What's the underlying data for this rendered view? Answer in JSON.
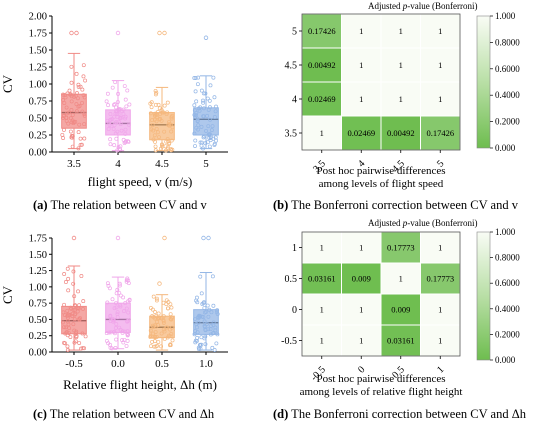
{
  "colors": {
    "series": [
      "#f08a86",
      "#f0a6ea",
      "#f5b87e",
      "#93b6e6"
    ],
    "heat_low": "#6ebd4f",
    "heat_high": "#f9fcf5",
    "heat_grid": "#ffffff"
  },
  "captions": [
    {
      "letter": "(a)",
      "text": " The relation between CV and v"
    },
    {
      "letter": "(b)",
      "text": " The Bonferroni correction between CV and v"
    },
    {
      "letter": "(c)",
      "text": " The relation between CV and Δh"
    },
    {
      "letter": "(d)",
      "text": " The Bonferroni correction between CV and Δh"
    }
  ],
  "chart_data": [
    {
      "id": "a",
      "type": "box",
      "xlabel": "flight speed, v (m/s)",
      "ylabel": "CV",
      "ylim": [
        0,
        2.0
      ],
      "yticks": [
        "0.00",
        "0.25",
        "0.50",
        "0.75",
        "1.00",
        "1.25",
        "1.50",
        "1.75",
        "2.00"
      ],
      "categories": [
        "3.5",
        "4",
        "4.5",
        "5"
      ],
      "boxes": [
        {
          "min": 0.05,
          "q1": 0.35,
          "median": 0.58,
          "q3": 0.85,
          "max": 1.45,
          "outliers": [
            1.75,
            1.75
          ]
        },
        {
          "min": 0.02,
          "q1": 0.25,
          "median": 0.42,
          "q3": 0.62,
          "max": 1.05,
          "outliers": [
            1.75
          ]
        },
        {
          "min": 0.02,
          "q1": 0.18,
          "median": 0.4,
          "q3": 0.58,
          "max": 0.95,
          "outliers": [
            1.75,
            1.75
          ]
        },
        {
          "min": 0.05,
          "q1": 0.25,
          "median": 0.48,
          "q3": 0.65,
          "max": 1.12,
          "outliers": [
            1.68
          ]
        }
      ]
    },
    {
      "id": "b",
      "type": "heatmap",
      "title": "Adjusted p-value (Bonferroni)",
      "xlabel": "Post hoc pairwise differences\namong levels of flight speed",
      "x_categories": [
        "3.5",
        "4",
        "4.5",
        "5"
      ],
      "y_categories": [
        "5",
        "4.5",
        "4",
        "3.5"
      ],
      "values": [
        [
          "0.17426",
          "1",
          "1",
          "1"
        ],
        [
          "0.00492",
          "1",
          "1",
          "1"
        ],
        [
          "0.02469",
          "1",
          "1",
          "1"
        ],
        [
          "1",
          "0.02469",
          "0.00492",
          "0.17426"
        ]
      ],
      "colorbar_ticks": [
        "0.000",
        "0.2000",
        "0.4000",
        "0.6000",
        "0.8000",
        "1.000"
      ],
      "colorbar_range": [
        0,
        1
      ]
    },
    {
      "id": "c",
      "type": "box",
      "xlabel": "Relative flight height, Δh (m)",
      "ylabel": "CV",
      "ylim": [
        0,
        1.75
      ],
      "yticks": [
        "0.00",
        "0.25",
        "0.50",
        "0.75",
        "1.00",
        "1.25",
        "1.50",
        "1.75"
      ],
      "categories": [
        "-0.5",
        "0.0",
        "0.5",
        "1.0"
      ],
      "boxes": [
        {
          "min": 0.03,
          "q1": 0.28,
          "median": 0.48,
          "q3": 0.7,
          "max": 1.32,
          "outliers": [
            1.75
          ]
        },
        {
          "min": 0.05,
          "q1": 0.3,
          "median": 0.5,
          "q3": 0.75,
          "max": 1.15,
          "outliers": [
            1.75
          ]
        },
        {
          "min": 0.03,
          "q1": 0.22,
          "median": 0.38,
          "q3": 0.55,
          "max": 0.88,
          "outliers": [
            1.05,
            1.75
          ]
        },
        {
          "min": 0.03,
          "q1": 0.27,
          "median": 0.45,
          "q3": 0.65,
          "max": 1.22,
          "outliers": [
            1.75,
            1.75
          ]
        }
      ]
    },
    {
      "id": "d",
      "type": "heatmap",
      "title": "Adjusted p-value (Bonferroni)",
      "xlabel": "Post hoc pairwise differences\namong levels of relative flight height",
      "x_categories": [
        "-0.5",
        "0",
        "0.5",
        "1"
      ],
      "y_categories": [
        "1",
        "0.5",
        "0",
        "-0.5"
      ],
      "values": [
        [
          "1",
          "1",
          "0.17773",
          "1"
        ],
        [
          "0.03161",
          "0.009",
          "1",
          "0.17773"
        ],
        [
          "1",
          "1",
          "0.009",
          "1"
        ],
        [
          "1",
          "1",
          "0.03161",
          "1"
        ]
      ],
      "colorbar_ticks": [
        "0.000",
        "0.2000",
        "0.4000",
        "0.6000",
        "0.8000",
        "1.000"
      ],
      "colorbar_range": [
        0,
        1
      ]
    }
  ]
}
